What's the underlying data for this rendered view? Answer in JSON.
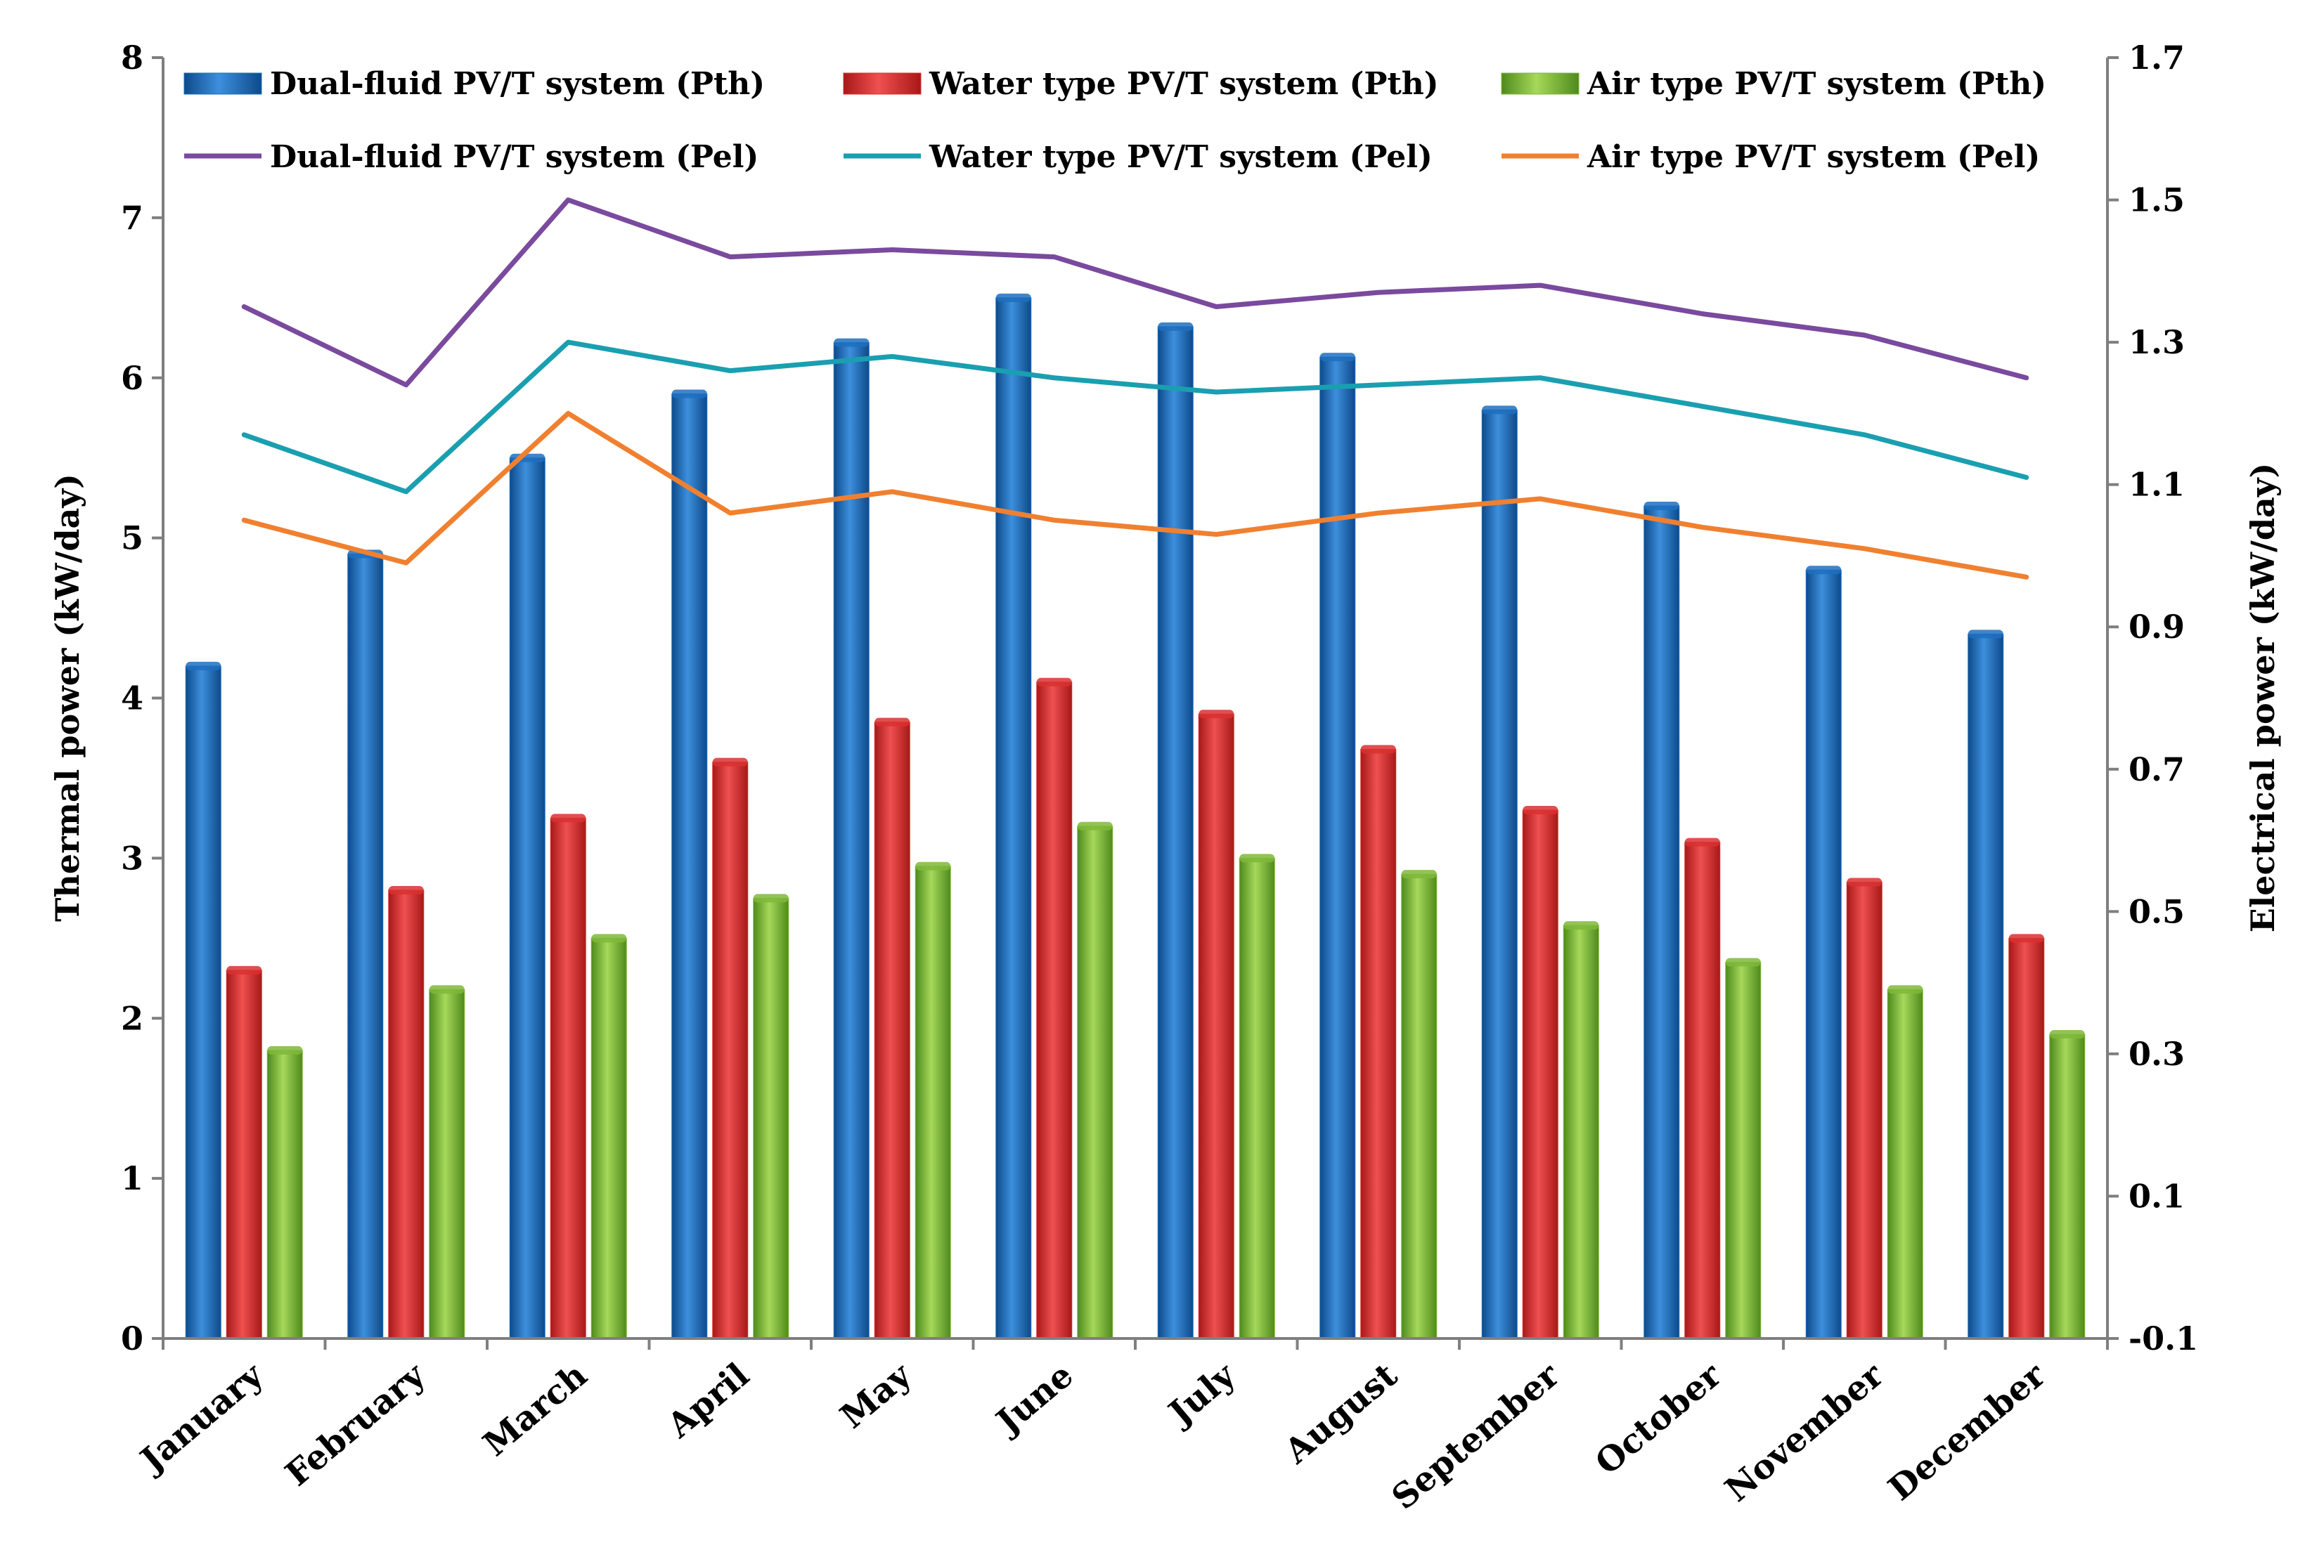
{
  "chart_data": {
    "type": "bar",
    "categories": [
      "January",
      "February",
      "March",
      "April",
      "May",
      "June",
      "July",
      "August",
      "September",
      "October",
      "November",
      "December"
    ],
    "bar_series": [
      {
        "name": "Dual-fluid PV/T system (Pth)",
        "color": "#1f6fbf",
        "values": [
          4.2,
          4.9,
          5.5,
          5.9,
          6.22,
          6.5,
          6.32,
          6.13,
          5.8,
          5.2,
          4.8,
          4.4
        ]
      },
      {
        "name": "Water type  PV/T system (Pth)",
        "color": "#d93030",
        "values": [
          2.3,
          2.8,
          3.25,
          3.6,
          3.85,
          4.1,
          3.9,
          3.68,
          3.3,
          3.1,
          2.85,
          2.5
        ]
      },
      {
        "name": "Air type  PV/T system (Pth)",
        "color": "#7fb83a",
        "values": [
          1.8,
          2.18,
          2.5,
          2.75,
          2.95,
          3.2,
          3.0,
          2.9,
          2.58,
          2.35,
          2.18,
          1.9
        ]
      }
    ],
    "line_series": [
      {
        "name": "Dual-fluid PV/T system (Pel)",
        "color": "#7a4a9e",
        "values": [
          1.35,
          1.24,
          1.5,
          1.42,
          1.43,
          1.42,
          1.35,
          1.37,
          1.38,
          1.34,
          1.31,
          1.25
        ]
      },
      {
        "name": "Water type  PV/T system (Pel)",
        "color": "#1a9fb0",
        "values": [
          1.17,
          1.09,
          1.3,
          1.26,
          1.28,
          1.25,
          1.23,
          1.24,
          1.25,
          1.21,
          1.17,
          1.11
        ]
      },
      {
        "name": "Air type  PV/T system (Pel)",
        "color": "#f08030",
        "values": [
          1.05,
          0.99,
          1.2,
          1.06,
          1.09,
          1.05,
          1.03,
          1.06,
          1.08,
          1.04,
          1.01,
          0.97
        ]
      }
    ],
    "y_left": {
      "label": "Thermal  power (kW/day)",
      "range": [
        0,
        8
      ],
      "ticks": [
        "0",
        "1",
        "2",
        "3",
        "4",
        "5",
        "6",
        "7",
        "8"
      ]
    },
    "y_right": {
      "label": "Electrical  power (kW/day)",
      "range": [
        -0.1,
        1.7
      ],
      "ticks": [
        "-0.1",
        "0.1",
        "0.3",
        "0.5",
        "0.7",
        "0.9",
        "1.1",
        "1.3",
        "1.5",
        "1.7"
      ]
    },
    "legend_position": "top",
    "grid": false
  }
}
